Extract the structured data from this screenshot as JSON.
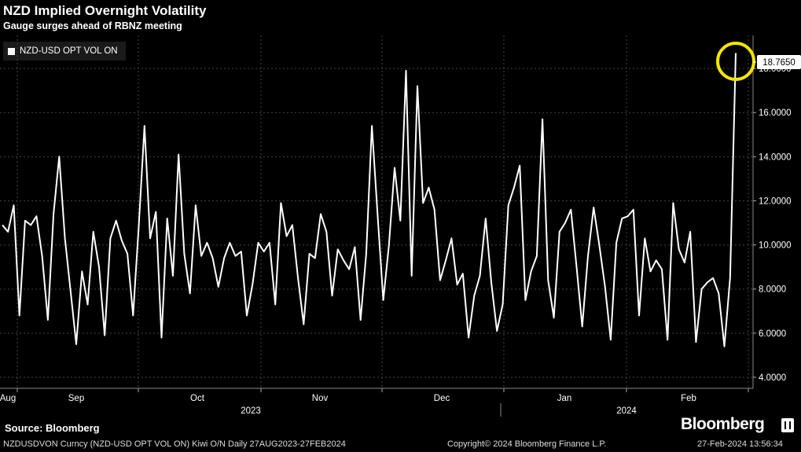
{
  "header": {
    "title": "NZD Implied Overnight Volatility",
    "subtitle": "Gauge surges ahead of RBNZ meeting"
  },
  "legend": {
    "label": "NZD-USD OPT VOL ON"
  },
  "source": "Source: Bloomberg",
  "brand": "Bloomberg",
  "footer": {
    "ticker": "NZDUSDVON Curncy (NZD-USD OPT VOL ON) Kiwi O/N  Daily 27AUG2023-27FEB2024",
    "copyright": "Copyright© 2024 Bloomberg Finance L.P.",
    "timestamp": "27-Feb-2024 13:56:34"
  },
  "colors": {
    "background": "#000000",
    "line": "#ffffff",
    "highlight": "#f2e600",
    "grid": "#444444"
  },
  "chart_data": {
    "type": "line",
    "title": "NZD Implied Overnight Volatility",
    "subtitle": "Gauge surges ahead of RBNZ meeting",
    "xlabel": "",
    "ylabel": "",
    "ylim": [
      3.5,
      19.5
    ],
    "yticks": [
      4,
      6,
      8,
      10,
      12,
      14,
      16,
      18
    ],
    "ytick_labels": [
      "4.0000",
      "6.0000",
      "8.0000",
      "10.0000",
      "12.0000",
      "14.0000",
      "16.0000",
      "18.0000"
    ],
    "x_month_labels": [
      "Aug",
      "Sep",
      "Oct",
      "Nov",
      "Dec",
      "Jan",
      "Feb"
    ],
    "x_year_labels": [
      "2023",
      "2024"
    ],
    "grid": true,
    "legend_position": "top-left",
    "last_value_label": "18.7650",
    "series": [
      {
        "name": "NZD-USD OPT VOL ON",
        "color": "#ffffff",
        "values": [
          10.9,
          10.6,
          11.8,
          6.8,
          11.1,
          10.9,
          11.3,
          9.5,
          6.6,
          11.4,
          14.0,
          10.3,
          7.9,
          5.5,
          8.8,
          7.3,
          10.6,
          9.0,
          5.9,
          10.3,
          11.1,
          10.2,
          9.6,
          6.8,
          10.9,
          15.4,
          10.3,
          11.5,
          5.8,
          11.2,
          8.6,
          14.1,
          9.6,
          7.8,
          11.8,
          9.5,
          10.1,
          9.4,
          8.1,
          9.4,
          10.1,
          9.5,
          9.7,
          6.8,
          8.2,
          10.1,
          9.7,
          10.1,
          7.3,
          11.9,
          10.4,
          10.9,
          8.5,
          6.4,
          9.6,
          9.4,
          11.4,
          10.6,
          7.7,
          9.8,
          9.3,
          8.9,
          9.9,
          6.6,
          9.6,
          15.4,
          11.4,
          7.5,
          10.0,
          13.5,
          11.1,
          17.9,
          8.6,
          17.2,
          11.9,
          12.6,
          11.6,
          8.4,
          9.3,
          10.3,
          8.2,
          8.7,
          5.8,
          7.7,
          8.6,
          11.2,
          8.3,
          6.1,
          7.3,
          11.8,
          12.6,
          13.6,
          7.5,
          8.8,
          9.5,
          15.7,
          8.4,
          6.7,
          10.6,
          11.0,
          11.6,
          9.0,
          6.3,
          9.5,
          11.7,
          10.0,
          8.1,
          5.7,
          10.1,
          11.2,
          11.3,
          11.6,
          6.8,
          10.3,
          8.8,
          9.3,
          8.9,
          5.7,
          11.9,
          9.8,
          9.2,
          10.6,
          5.6,
          8.0,
          8.3,
          8.5,
          7.8,
          5.4,
          8.5,
          18.7
        ]
      }
    ]
  }
}
